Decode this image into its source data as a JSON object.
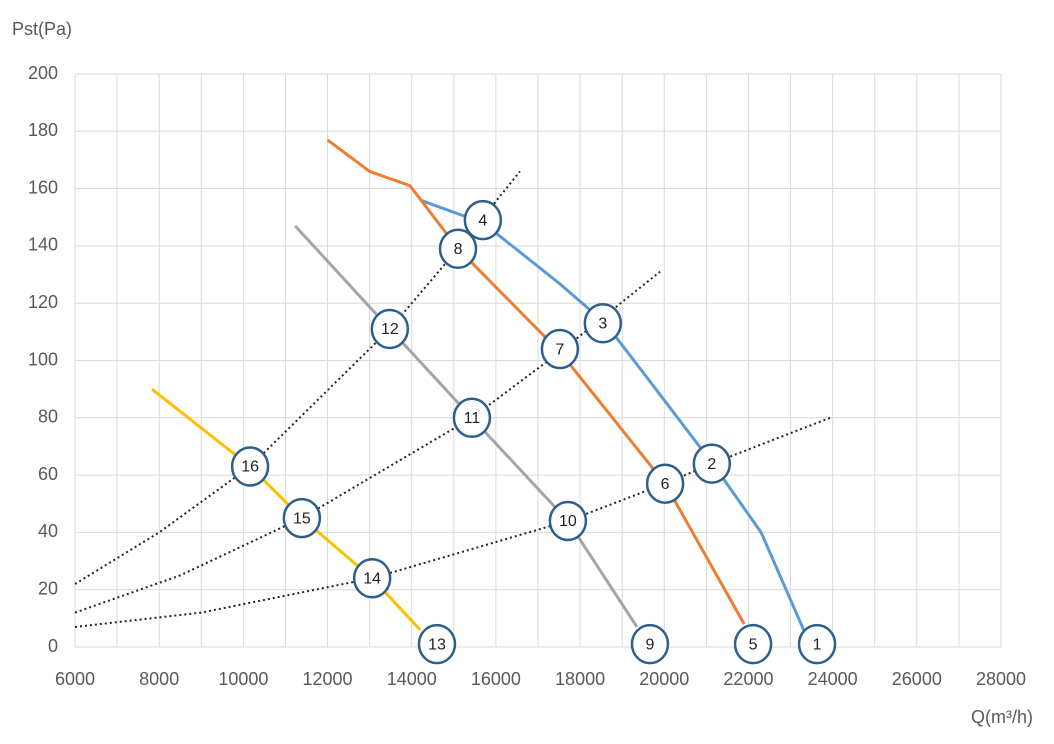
{
  "chart_data": {
    "type": "line",
    "y_label": "Pst(Pa)",
    "x_label": "Q(m³/h)",
    "xlim": [
      6000,
      28000
    ],
    "xticks": [
      6000,
      8000,
      10000,
      12000,
      14000,
      16000,
      18000,
      20000,
      22000,
      24000,
      26000,
      28000
    ],
    "ylim": [
      0,
      200
    ],
    "yticks": [
      0,
      20,
      40,
      60,
      80,
      100,
      120,
      140,
      160,
      180,
      200
    ],
    "grid": true,
    "series": [
      {
        "color": "#5b9bd5",
        "style": "solid",
        "x": [
          14200,
          15700,
          17500,
          18600,
          19800,
          21200,
          22300,
          23400
        ],
        "values": [
          156,
          148,
          127,
          113,
          90,
          63,
          40,
          3
        ]
      },
      {
        "color": "#ed7d31",
        "style": "solid",
        "x": [
          12000,
          13000,
          13960,
          15100,
          17520,
          20020,
          21900
        ],
        "values": [
          177,
          166,
          161,
          139,
          103,
          57,
          8
        ]
      },
      {
        "color": "#a5a5a5",
        "style": "solid",
        "x": [
          11230,
          13480,
          15430,
          17710,
          19350
        ],
        "values": [
          147,
          111,
          80,
          44,
          7
        ]
      },
      {
        "color": "#ffc000",
        "style": "solid",
        "x": [
          7830,
          10160,
          11390,
          13060,
          14200
        ],
        "values": [
          90,
          63,
          45,
          24,
          6
        ]
      },
      {
        "color": "#222222",
        "style": "dotted",
        "x": [
          6000,
          8000,
          10160,
          13480,
          15100,
          16570
        ],
        "values": [
          22,
          40,
          63,
          111,
          139,
          166
        ]
      },
      {
        "color": "#222222",
        "style": "dotted",
        "x": [
          6000,
          8500,
          11390,
          15430,
          17520,
          19900
        ],
        "values": [
          12,
          25,
          45,
          80,
          103,
          131
        ]
      },
      {
        "color": "#222222",
        "style": "dotted",
        "x": [
          6000,
          9000,
          13060,
          17710,
          20020,
          21130,
          23940
        ],
        "values": [
          7,
          12,
          24,
          44,
          57,
          64,
          80
        ]
      }
    ],
    "markers": [
      {
        "label": "1",
        "x": 23630,
        "y": 1
      },
      {
        "label": "2",
        "x": 21130,
        "y": 64
      },
      {
        "label": "3",
        "x": 18540,
        "y": 113
      },
      {
        "label": "4",
        "x": 15690,
        "y": 149
      },
      {
        "label": "5",
        "x": 22110,
        "y": 1
      },
      {
        "label": "6",
        "x": 20020,
        "y": 57
      },
      {
        "label": "7",
        "x": 17520,
        "y": 104
      },
      {
        "label": "8",
        "x": 15100,
        "y": 139
      },
      {
        "label": "9",
        "x": 19660,
        "y": 1
      },
      {
        "label": "10",
        "x": 17710,
        "y": 44
      },
      {
        "label": "11",
        "x": 15430,
        "y": 80
      },
      {
        "label": "12",
        "x": 13480,
        "y": 111
      },
      {
        "label": "13",
        "x": 14600,
        "y": 1
      },
      {
        "label": "14",
        "x": 13060,
        "y": 24
      },
      {
        "label": "15",
        "x": 11390,
        "y": 45
      },
      {
        "label": "16",
        "x": 10160,
        "y": 63
      }
    ]
  }
}
